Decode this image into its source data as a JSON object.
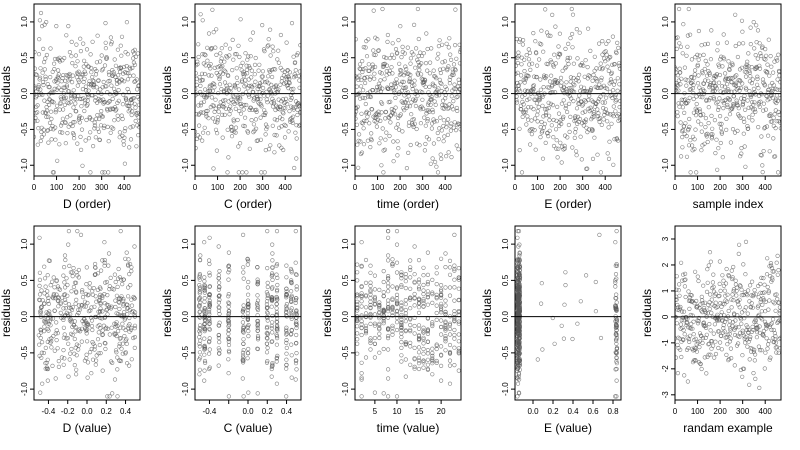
{
  "figure": {
    "ylabel": "residuals",
    "colors": {
      "axis": "#000000",
      "point": "#555555",
      "zero_line": "#000000",
      "background": "#ffffff"
    },
    "marker": "open-circle"
  },
  "chart_data": [
    {
      "type": "scatter",
      "id": "D-order",
      "xlabel": "D (order)",
      "ylabel": "residuals",
      "xlim": [
        0,
        470
      ],
      "ylim": [
        -1.15,
        1.25
      ],
      "xticks": [
        0,
        100,
        200,
        300,
        400
      ],
      "xtick_labels": [
        "0",
        "100",
        "200",
        "300",
        "400"
      ],
      "yticks": [
        -1.0,
        -0.5,
        0.0,
        0.5,
        1.0
      ],
      "ytick_labels": [
        "-1.0",
        "-0.5",
        "0.0",
        "0.5",
        "1.0"
      ],
      "hline": 0,
      "points": []
    },
    {
      "type": "scatter",
      "id": "C-order",
      "xlabel": "C (order)",
      "ylabel": "residuals",
      "xlim": [
        0,
        470
      ],
      "ylim": [
        -1.15,
        1.25
      ],
      "xticks": [
        0,
        100,
        200,
        300,
        400
      ],
      "xtick_labels": [
        "0",
        "100",
        "200",
        "300",
        "400"
      ],
      "yticks": [
        -1.0,
        -0.5,
        0.0,
        0.5,
        1.0
      ],
      "ytick_labels": [
        "-1.0",
        "-0.5",
        "0.0",
        "0.5",
        "1.0"
      ],
      "hline": 0,
      "points": []
    },
    {
      "type": "scatter",
      "id": "time-order",
      "xlabel": "time (order)",
      "ylabel": "residuals",
      "xlim": [
        0,
        470
      ],
      "ylim": [
        -1.15,
        1.25
      ],
      "xticks": [
        0,
        100,
        200,
        300,
        400
      ],
      "xtick_labels": [
        "0",
        "100",
        "200",
        "300",
        "400"
      ],
      "yticks": [
        -1.0,
        -0.5,
        0.0,
        0.5,
        1.0
      ],
      "ytick_labels": [
        "-1.0",
        "-0.5",
        "0.0",
        "0.5",
        "1.0"
      ],
      "hline": 0,
      "points": []
    },
    {
      "type": "scatter",
      "id": "E-order",
      "xlabel": "E (order)",
      "ylabel": "residuals",
      "xlim": [
        0,
        470
      ],
      "ylim": [
        -1.15,
        1.25
      ],
      "xticks": [
        0,
        100,
        200,
        300,
        400
      ],
      "xtick_labels": [
        "0",
        "100",
        "200",
        "300",
        "400"
      ],
      "yticks": [
        -1.0,
        -0.5,
        0.0,
        0.5,
        1.0
      ],
      "ytick_labels": [
        "-1.0",
        "-0.5",
        "0.0",
        "0.5",
        "1.0"
      ],
      "hline": 0,
      "points": []
    },
    {
      "type": "scatter",
      "id": "sample-index",
      "xlabel": "sample index",
      "ylabel": "residuals",
      "xlim": [
        0,
        470
      ],
      "ylim": [
        -1.15,
        1.25
      ],
      "xticks": [
        0,
        100,
        200,
        300,
        400
      ],
      "xtick_labels": [
        "0",
        "100",
        "200",
        "300",
        "400"
      ],
      "yticks": [
        -1.0,
        -0.5,
        0.0,
        0.5,
        1.0
      ],
      "ytick_labels": [
        "-1.0",
        "-0.5",
        "0.0",
        "0.5",
        "1.0"
      ],
      "hline": 0,
      "points": []
    },
    {
      "type": "scatter",
      "id": "D-value",
      "xlabel": "D (value)",
      "ylabel": "residuals",
      "xlim": [
        -0.55,
        0.55
      ],
      "ylim": [
        -1.15,
        1.25
      ],
      "xticks": [
        -0.4,
        -0.2,
        0.0,
        0.2,
        0.4
      ],
      "xtick_labels": [
        "-0.4",
        "-0.2",
        "0.0",
        "0.2",
        "0.4"
      ],
      "yticks": [
        -1.0,
        -0.5,
        0.0,
        0.5,
        1.0
      ],
      "ytick_labels": [
        "-1.0",
        "-0.5",
        "0.0",
        "0.5",
        "1.0"
      ],
      "hline": 0,
      "points": []
    },
    {
      "type": "scatter",
      "id": "C-value",
      "xlabel": "C (value)",
      "ylabel": "residuals",
      "xlim": [
        -0.55,
        0.55
      ],
      "ylim": [
        -1.15,
        1.25
      ],
      "xticks": [
        -0.4,
        -0.2,
        0.0,
        0.2,
        0.4
      ],
      "xtick_labels": [
        "-0.4",
        "",
        "0.0",
        "0.2",
        "0.4"
      ],
      "yticks": [
        -1.0,
        -0.5,
        0.0,
        0.5,
        1.0
      ],
      "ytick_labels": [
        "-1.0",
        "-0.5",
        "0.0",
        "0.5",
        "1.0"
      ],
      "hline": 0,
      "points": []
    },
    {
      "type": "scatter",
      "id": "time-value",
      "xlabel": "time (value)",
      "ylabel": "residuals",
      "xlim": [
        0.5,
        24.5
      ],
      "ylim": [
        -1.15,
        1.25
      ],
      "xticks": [
        5,
        10,
        15,
        20
      ],
      "xtick_labels": [
        "5",
        "10",
        "15",
        "20"
      ],
      "yticks": [
        -1.0,
        -0.5,
        0.0,
        0.5,
        1.0
      ],
      "ytick_labels": [
        "-1.0",
        "-0.5",
        "0.0",
        "0.5",
        "1.0"
      ],
      "hline": 0,
      "points": []
    },
    {
      "type": "scatter",
      "id": "E-value",
      "xlabel": "E (value)",
      "ylabel": "residuals",
      "xlim": [
        -0.18,
        0.88
      ],
      "ylim": [
        -1.15,
        1.25
      ],
      "xticks": [
        0.0,
        0.2,
        0.4,
        0.6,
        0.8
      ],
      "xtick_labels": [
        "0.0",
        "0.2",
        "0.4",
        "0.6",
        "0.8"
      ],
      "yticks": [
        -1.0,
        -0.5,
        0.0,
        0.5,
        1.0
      ],
      "ytick_labels": [
        "-1.0",
        "-0.5",
        "0.0",
        "0.5",
        "1.0"
      ],
      "hline": 0,
      "points": []
    },
    {
      "type": "scatter",
      "id": "random-example",
      "xlabel": "randam example",
      "ylabel": "residuals",
      "xlim": [
        0,
        470
      ],
      "ylim": [
        -3.2,
        3.5
      ],
      "xticks": [
        0,
        100,
        200,
        300,
        400
      ],
      "xtick_labels": [
        "0",
        "100",
        "200",
        "300",
        "400"
      ],
      "yticks": [
        -3,
        -2,
        -1,
        0,
        1,
        2,
        3
      ],
      "ytick_labels": [
        "-3",
        "-2",
        "-1",
        "0",
        "1",
        "2",
        "3"
      ],
      "hline": 0,
      "points": []
    }
  ]
}
